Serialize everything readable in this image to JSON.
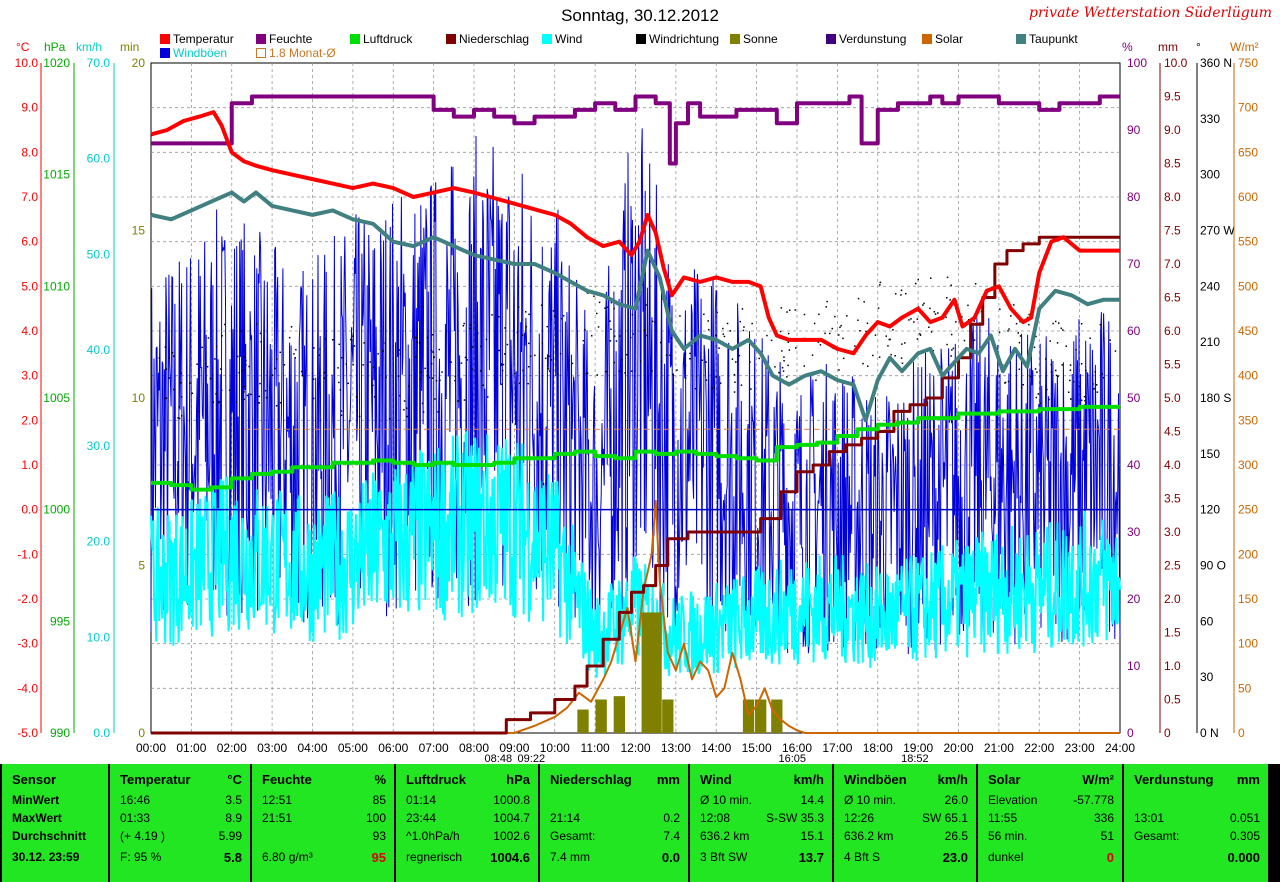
{
  "title": "Sonntag, 30.12.2012",
  "brand": "private Wetterstation Süderlügum",
  "legend": [
    {
      "label": "Temperatur",
      "color": "#ff0000"
    },
    {
      "label": "Feuchte",
      "color": "#800080"
    },
    {
      "label": "Luftdruck",
      "color": "#00dd00"
    },
    {
      "label": "Niederschlag",
      "color": "#800000"
    },
    {
      "label": "Wind",
      "color": "#00ffff"
    },
    {
      "label": "Windrichtung",
      "color": "#000000"
    },
    {
      "label": "Sonne",
      "color": "#808000"
    },
    {
      "label": "Verdunstung",
      "color": "#400080"
    },
    {
      "label": "Solar",
      "color": "#cc6600"
    },
    {
      "label": "Taupunkt",
      "color": "#408080"
    },
    {
      "label": "Windböen",
      "color": "#0000dd"
    },
    {
      "label": "1.8 Monat-Ø",
      "color": "#cc7722"
    }
  ],
  "axis_units": {
    "temp": "°C",
    "hpa": "hPa",
    "kmh": "km/h",
    "min": "min",
    "pct": "%",
    "mm": "mm",
    "deg": "°",
    "wm2": "W/m²"
  },
  "axis_colors": {
    "temp": "#ff0000",
    "hpa": "#00aa00",
    "kmh": "#00cccc",
    "min": "#808000",
    "pct": "#800080",
    "mm": "#800000",
    "deg": "#000000",
    "wm2": "#cc6600"
  },
  "axes": {
    "temp": [
      "10.0",
      "9.0",
      "8.0",
      "7.0",
      "6.0",
      "5.0",
      "4.0",
      "3.0",
      "2.0",
      "1.0",
      "0.0",
      "-1.0",
      "-2.0",
      "-3.0",
      "-4.0",
      "-5.0"
    ],
    "hpa": [
      "1020",
      "1015",
      "1010",
      "1005",
      "1000",
      "995",
      "990"
    ],
    "kmh": [
      "70.0",
      "60.0",
      "50.0",
      "40.0",
      "30.0",
      "20.0",
      "10.0",
      "0.0"
    ],
    "min": [
      "20",
      "15",
      "10",
      "5",
      "0"
    ],
    "pct": [
      "100",
      "90",
      "80",
      "70",
      "60",
      "50",
      "40",
      "30",
      "20",
      "10",
      "0"
    ],
    "mm": [
      "10.0",
      "9.5",
      "9.0",
      "8.5",
      "8.0",
      "7.5",
      "7.0",
      "6.5",
      "6.0",
      "5.5",
      "5.0",
      "4.5",
      "4.0",
      "3.5",
      "3.0",
      "2.5",
      "2.0",
      "1.5",
      "1.0",
      "0.5",
      "0"
    ],
    "deg": [
      "360 N",
      "330",
      "300",
      "270 W",
      "240",
      "210",
      "180 S",
      "150",
      "120",
      "90 O",
      "60",
      "30",
      "0 N"
    ],
    "wm2": [
      "750",
      "700",
      "650",
      "600",
      "550",
      "500",
      "450",
      "400",
      "350",
      "300",
      "250",
      "200",
      "150",
      "100",
      "50",
      "0"
    ]
  },
  "time_marks": [
    "08:48",
    "09:22",
    "16:05",
    "18:52"
  ],
  "chart_data": {
    "type": "line",
    "title": "Sonntag, 30.12.2012",
    "x_ticks": [
      "00:00",
      "01:00",
      "02:00",
      "03:00",
      "04:00",
      "05:00",
      "06:00",
      "07:00",
      "08:00",
      "09:00",
      "10:00",
      "11:00",
      "12:00",
      "13:00",
      "14:00",
      "15:00",
      "16:00",
      "17:00",
      "18:00",
      "19:00",
      "20:00",
      "21:00",
      "22:00",
      "23:00",
      "24:00"
    ],
    "xlim": [
      0,
      24
    ],
    "grid": true,
    "series": [
      {
        "name": "Temperatur",
        "unit": "°C",
        "ylim": [
          -5,
          10
        ],
        "color": "#ff0000",
        "x": [
          0,
          0.4,
          0.8,
          1.2,
          1.55,
          1.75,
          2,
          2.3,
          2.6,
          3,
          3.5,
          4,
          4.5,
          5,
          5.5,
          6,
          6.5,
          7,
          7.5,
          8,
          8.4,
          8.8,
          9.2,
          9.6,
          10,
          10.4,
          10.8,
          11.2,
          11.6,
          11.9,
          12.1,
          12.3,
          12.5,
          12.7,
          12.9,
          13.2,
          13.6,
          14,
          14.4,
          14.8,
          15.1,
          15.3,
          15.5,
          15.8,
          16.2,
          16.6,
          17,
          17.4,
          17.7,
          18,
          18.3,
          18.6,
          19,
          19.3,
          19.6,
          19.9,
          20.1,
          20.4,
          20.7,
          21,
          21.3,
          21.6,
          21.8,
          22,
          22.3,
          22.6,
          23,
          23.3,
          23.6,
          24
        ],
        "y": [
          8.4,
          8.5,
          8.7,
          8.8,
          8.9,
          8.6,
          8.0,
          7.8,
          7.7,
          7.6,
          7.5,
          7.4,
          7.3,
          7.2,
          7.3,
          7.2,
          7.0,
          7.1,
          7.2,
          7.1,
          7.0,
          6.9,
          6.8,
          6.7,
          6.6,
          6.4,
          6.1,
          5.9,
          6.0,
          5.7,
          6.0,
          6.6,
          6.2,
          5.4,
          4.8,
          5.2,
          5.1,
          5.2,
          5.1,
          5.1,
          5.0,
          4.3,
          3.9,
          3.8,
          3.8,
          3.8,
          3.6,
          3.5,
          3.9,
          4.2,
          4.1,
          4.3,
          4.5,
          4.2,
          4.3,
          4.7,
          4.1,
          4.3,
          4.9,
          5.0,
          4.5,
          4.2,
          4.3,
          5.3,
          6.0,
          6.1,
          5.8,
          5.8,
          5.8,
          5.8
        ]
      },
      {
        "name": "Feuchte",
        "unit": "%",
        "ylim": [
          0,
          100
        ],
        "color": "#800080",
        "x": [
          0,
          0.5,
          1,
          1.5,
          2,
          2.5,
          3,
          3.5,
          4,
          4.5,
          5,
          5.5,
          6,
          6.5,
          7,
          7.5,
          8,
          8.5,
          9,
          9.5,
          10,
          10.5,
          11,
          11.5,
          12,
          12.5,
          12.85,
          13,
          13.3,
          13.6,
          14,
          14.5,
          15,
          15.5,
          16,
          16.5,
          17,
          17.3,
          17.6,
          18,
          18.5,
          19,
          19.3,
          19.6,
          20,
          20.5,
          21,
          21.5,
          22,
          22.5,
          23,
          23.5,
          24
        ],
        "y": [
          88,
          88,
          88,
          88,
          94,
          95,
          95,
          95,
          95,
          95,
          95,
          95,
          95,
          95,
          93,
          92,
          93,
          92,
          91,
          92,
          92,
          93,
          94,
          93,
          95,
          94,
          85,
          91,
          94,
          92,
          92,
          93,
          93,
          91,
          94,
          94,
          94,
          95,
          88,
          93,
          94,
          94,
          95,
          94,
          95,
          95,
          94,
          94,
          93,
          94,
          94,
          95,
          95
        ]
      },
      {
        "name": "Luftdruck",
        "unit": "hPa",
        "ylim": [
          990,
          1020
        ],
        "color": "#00dd00",
        "x": [
          0,
          0.5,
          1,
          1.5,
          2,
          2.5,
          3,
          3.5,
          4,
          4.5,
          5,
          5.5,
          6,
          6.5,
          7,
          7.5,
          8,
          8.5,
          9,
          9.5,
          10,
          10.5,
          11,
          11.5,
          12,
          12.5,
          13,
          13.5,
          14,
          14.5,
          15,
          15.5,
          16,
          16.5,
          17,
          17.5,
          18,
          18.5,
          19,
          19.5,
          20,
          20.5,
          21,
          21.5,
          22,
          22.5,
          23,
          23.5,
          24
        ],
        "y": [
          1001.2,
          1001.1,
          1000.9,
          1001.0,
          1001.4,
          1001.6,
          1001.7,
          1001.9,
          1001.9,
          1002.1,
          1002.1,
          1002.2,
          1002.1,
          1002.0,
          1002.1,
          1002.0,
          1002.0,
          1002.1,
          1002.3,
          1002.3,
          1002.5,
          1002.6,
          1002.4,
          1002.3,
          1002.6,
          1002.5,
          1002.6,
          1002.5,
          1002.4,
          1002.3,
          1002.2,
          1002.8,
          1002.9,
          1003.0,
          1003.3,
          1003.6,
          1003.8,
          1003.9,
          1004.1,
          1004.1,
          1004.3,
          1004.3,
          1004.4,
          1004.4,
          1004.5,
          1004.5,
          1004.6,
          1004.6,
          1004.6
        ]
      },
      {
        "name": "Taupunkt",
        "unit": "°C",
        "ylim": [
          -5,
          10
        ],
        "color": "#408080",
        "x": [
          0,
          0.5,
          1,
          1.5,
          2,
          2.3,
          2.6,
          3,
          3.5,
          4,
          4.5,
          5,
          5.5,
          6,
          6.5,
          7,
          7.5,
          8,
          8.5,
          9,
          9.5,
          10,
          10.4,
          10.8,
          11.2,
          11.6,
          12,
          12.3,
          12.6,
          12.9,
          13.2,
          13.6,
          14,
          14.4,
          14.8,
          15.1,
          15.4,
          15.8,
          16.2,
          16.6,
          17,
          17.4,
          17.7,
          18,
          18.3,
          18.6,
          19,
          19.3,
          19.6,
          19.9,
          20.2,
          20.5,
          20.8,
          21.1,
          21.4,
          21.7,
          22,
          22.4,
          22.8,
          23.2,
          23.6,
          24
        ],
        "y": [
          6.6,
          6.5,
          6.7,
          6.9,
          7.1,
          6.9,
          7.1,
          6.8,
          6.7,
          6.6,
          6.7,
          6.5,
          6.4,
          6.0,
          5.9,
          6.1,
          5.9,
          5.7,
          5.6,
          5.5,
          5.5,
          5.3,
          5.1,
          4.9,
          4.8,
          4.6,
          4.5,
          5.8,
          5.2,
          4.0,
          3.6,
          3.9,
          3.8,
          3.6,
          3.8,
          3.5,
          3.0,
          2.8,
          3.0,
          3.1,
          2.9,
          2.8,
          2.0,
          2.9,
          3.4,
          3.1,
          3.5,
          3.6,
          3.0,
          3.3,
          3.6,
          3.5,
          3.9,
          3.1,
          3.6,
          3.2,
          4.5,
          4.9,
          4.8,
          4.6,
          4.7,
          4.7
        ]
      },
      {
        "name": "Niederschlag",
        "unit": "mm",
        "ylim": [
          0,
          10
        ],
        "color": "#800000",
        "x": [
          0,
          8.4,
          8.8,
          9.4,
          10,
          10.5,
          10.8,
          11.2,
          11.6,
          11.9,
          12.2,
          12.5,
          12.8,
          13.3,
          13.9,
          14.6,
          15.1,
          15.6,
          16.0,
          16.4,
          16.8,
          17.2,
          17.6,
          18.0,
          18.4,
          18.8,
          19.2,
          19.6,
          20.0,
          20.3,
          20.6,
          20.9,
          21.2,
          21.6,
          22,
          23,
          24
        ],
        "y": [
          0,
          0,
          0.2,
          0.3,
          0.5,
          0.7,
          1.0,
          1.4,
          1.8,
          2.1,
          2.2,
          2.5,
          2.9,
          3.0,
          3.0,
          3.0,
          3.2,
          3.6,
          3.9,
          4.0,
          4.2,
          4.3,
          4.4,
          4.5,
          4.8,
          4.9,
          5.0,
          5.3,
          5.6,
          6.1,
          6.5,
          7.0,
          7.2,
          7.3,
          7.4,
          7.4,
          7.4
        ]
      },
      {
        "name": "Solar",
        "unit": "W/m²",
        "ylim": [
          0,
          750
        ],
        "color": "#cc6600",
        "x": [
          0,
          9,
          9.5,
          10,
          10.3,
          10.6,
          10.9,
          11.2,
          11.4,
          11.6,
          11.8,
          12,
          12.2,
          12.4,
          12.5,
          12.6,
          12.8,
          13,
          13.2,
          13.4,
          13.6,
          13.8,
          14,
          14.2,
          14.4,
          14.6,
          14.8,
          15,
          15.2,
          15.4,
          15.6,
          15.8,
          16,
          16.2,
          24
        ],
        "y": [
          0,
          0,
          8,
          18,
          28,
          45,
          35,
          60,
          80,
          110,
          140,
          80,
          160,
          200,
          260,
          170,
          90,
          70,
          100,
          60,
          80,
          70,
          40,
          50,
          90,
          60,
          20,
          30,
          50,
          25,
          15,
          8,
          3,
          0,
          0
        ]
      },
      {
        "name": "Sonne",
        "unit": "min",
        "ylim": [
          0,
          20
        ],
        "color": "#808000",
        "x": [
          10.7,
          11.15,
          11.6,
          12.4,
          12.8,
          14.8,
          15.1,
          15.5
        ],
        "y": [
          0.7,
          1.0,
          1.1,
          3.6,
          1.0,
          1.0,
          1.0,
          1.0
        ]
      },
      {
        "name": "Wind",
        "unit": "km/h",
        "ylim": [
          0,
          70
        ],
        "color": "#00ffff",
        "kind": "noisy_mean",
        "x": [
          0,
          1,
          2,
          3,
          4,
          5,
          6,
          7,
          8,
          9,
          10,
          11,
          12,
          13,
          14,
          15,
          16,
          17,
          18,
          19,
          20,
          21,
          22,
          23,
          24
        ],
        "y": [
          16,
          17,
          19,
          18,
          17,
          18,
          20,
          21,
          22,
          22,
          19,
          10,
          13,
          10,
          11,
          12,
          13,
          13,
          12,
          13,
          14,
          15,
          15,
          16,
          16
        ]
      },
      {
        "name": "Windböen",
        "unit": "km/h",
        "ylim": [
          0,
          70
        ],
        "color": "#0000dd",
        "kind": "noisy_mean",
        "x": [
          0,
          1,
          2,
          3,
          4,
          5,
          6,
          7,
          8,
          9,
          10,
          11,
          12,
          13,
          14,
          15,
          16,
          17,
          18,
          19,
          20,
          21,
          22,
          23,
          24
        ],
        "y": [
          30,
          32,
          34,
          31,
          30,
          33,
          35,
          36,
          38,
          38,
          34,
          25,
          40,
          30,
          30,
          26,
          23,
          24,
          22,
          24,
          26,
          27,
          25,
          27,
          28
        ]
      },
      {
        "name": "Windrichtung",
        "unit": "°",
        "ylim": [
          0,
          360
        ],
        "color": "#000000",
        "kind": "scatter_noise",
        "x": [
          0,
          2,
          4,
          6,
          8,
          10,
          12,
          14,
          16,
          18,
          20,
          22,
          24
        ],
        "y": [
          185,
          200,
          195,
          190,
          200,
          215,
          215,
          205,
          210,
          220,
          225,
          200,
          200
        ]
      }
    ]
  },
  "table": {
    "sensor": {
      "header": "Sensor",
      "rows": [
        "MinWert",
        "MaxWert",
        "Durchschnitt",
        "30.12. 23:59"
      ]
    },
    "temperatur": {
      "header": "Temperatur",
      "unit": "°C",
      "rows": [
        [
          "16:46",
          "3.5"
        ],
        [
          "01:33",
          "8.9"
        ],
        [
          "(+ 4.19 )",
          "5.99"
        ],
        [
          "F: 95 %",
          "5.8"
        ]
      ]
    },
    "feuchte": {
      "header": "Feuchte",
      "unit": "%",
      "rows": [
        [
          "12:51",
          "85"
        ],
        [
          "21:51",
          "100"
        ],
        [
          "",
          "93"
        ],
        [
          "6.80 g/m³",
          "95"
        ]
      ]
    },
    "luftdruck": {
      "header": "Luftdruck",
      "unit": "hPa",
      "rows": [
        [
          "01:14",
          "1000.8"
        ],
        [
          "23:44",
          "1004.7"
        ],
        [
          "^1.0hPa/h",
          "1002.6"
        ],
        [
          "regnerisch",
          "1004.6"
        ]
      ]
    },
    "niederschlag": {
      "header": "Niederschlag",
      "unit": "mm",
      "rows": [
        [
          "",
          ""
        ],
        [
          "21:14",
          "0.2"
        ],
        [
          "Gesamt:",
          "7.4"
        ],
        [
          "7.4 mm",
          "0.0"
        ]
      ]
    },
    "wind": {
      "header": "Wind",
      "unit": "km/h",
      "rows": [
        [
          "Ø 10 min.",
          "14.4"
        ],
        [
          "12:08",
          "S-SW 35.3"
        ],
        [
          "636.2 km",
          "15.1"
        ],
        [
          "3 Bft SW",
          "13.7"
        ]
      ]
    },
    "windboeen": {
      "header": "Windböen",
      "unit": "km/h",
      "rows": [
        [
          "Ø 10 min.",
          "26.0"
        ],
        [
          "12:26",
          "SW 65.1"
        ],
        [
          "636.2 km",
          "26.5"
        ],
        [
          "4 Bft S",
          "23.0"
        ]
      ]
    },
    "solar": {
      "header": "Solar",
      "unit": "W/m²",
      "rows": [
        [
          "Elevation",
          "-57.778"
        ],
        [
          "11:55",
          "336"
        ],
        [
          "56 min.",
          "51"
        ],
        [
          "dunkel",
          "0"
        ]
      ]
    },
    "verdunstung": {
      "header": "Verdunstung",
      "unit": "mm",
      "rows": [
        [
          "",
          ""
        ],
        [
          "13:01",
          "0.051"
        ],
        [
          "Gesamt:",
          "0.305"
        ],
        [
          "",
          "0.000"
        ]
      ]
    }
  }
}
